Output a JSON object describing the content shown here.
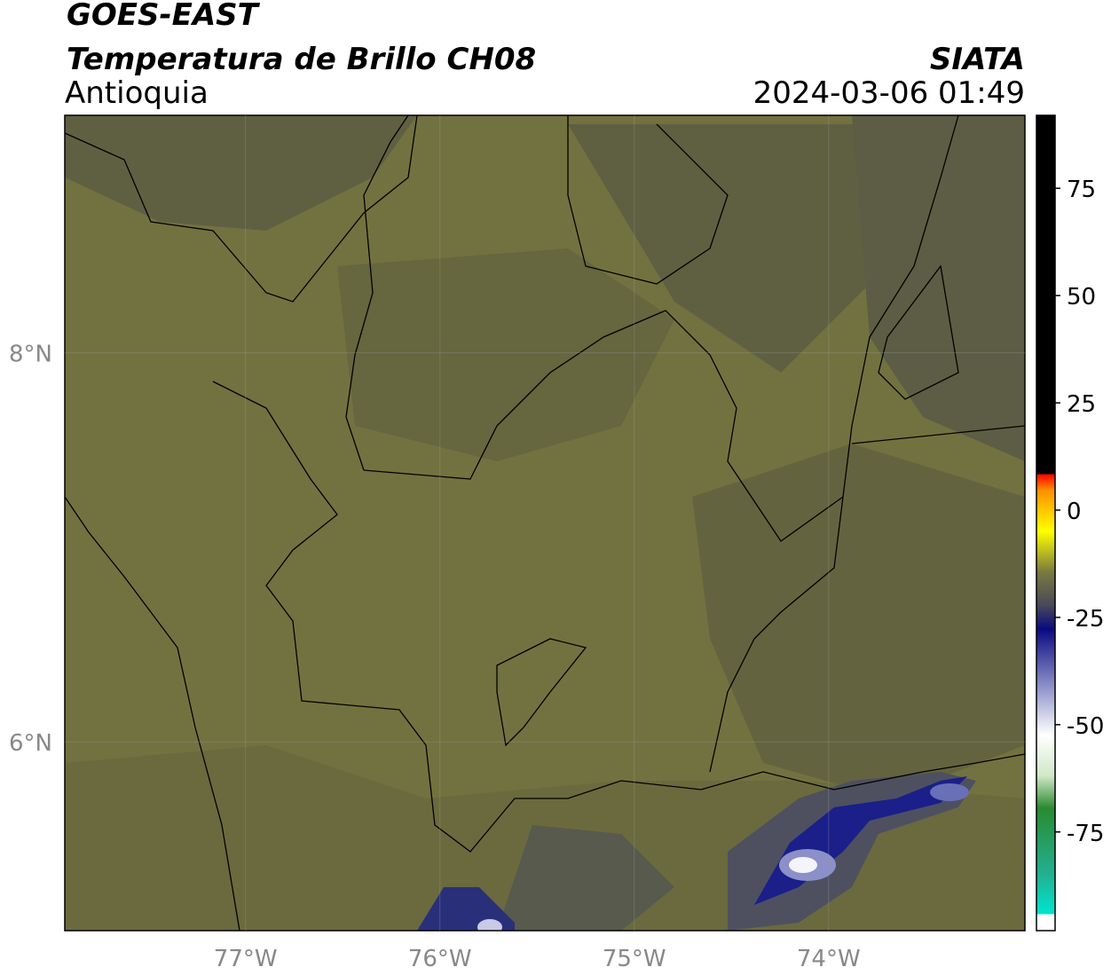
{
  "header": {
    "title": "GOES-EAST",
    "subtitle": "Temperatura de Brillo CH08",
    "region": "Antioquia",
    "source": "SIATA",
    "datetime": "2024-03-06 01:49"
  },
  "map": {
    "xlim": [
      -77.93,
      -72.99
    ],
    "ylim": [
      5.03,
      9.22
    ],
    "xticks": [
      {
        "value": -77,
        "label": "77°W"
      },
      {
        "value": -76,
        "label": "76°W"
      },
      {
        "value": -75,
        "label": "75°W"
      },
      {
        "value": -74,
        "label": "74°W"
      }
    ],
    "yticks": [
      {
        "value": 8,
        "label": "8°N"
      },
      {
        "value": 6,
        "label": "6°N"
      }
    ],
    "grid": true
  },
  "colorbar": {
    "lim": [
      -98,
      92
    ],
    "ticks": [
      75,
      50,
      25,
      0,
      -25,
      -50,
      -75
    ]
  }
}
